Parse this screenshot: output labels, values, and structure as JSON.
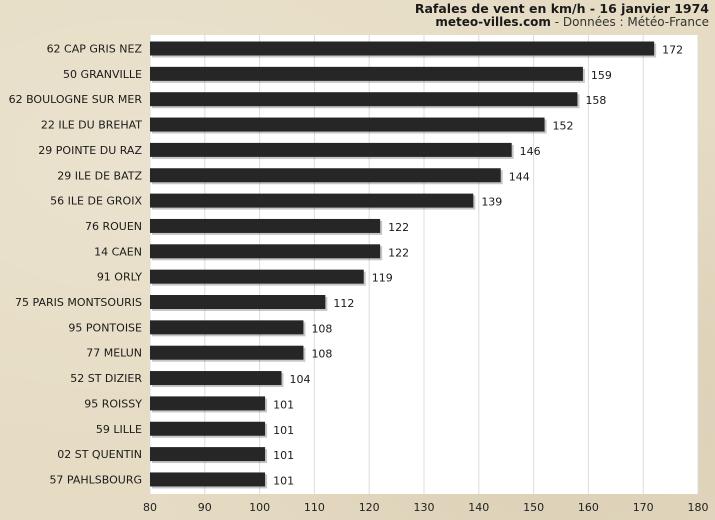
{
  "chart_data": {
    "type": "bar",
    "orientation": "horizontal",
    "title": "Rafales de vent en km/h - 16 janvier 1974",
    "subtitle_site": "meteo-villes.com",
    "subtitle_source": " - Données : Météo-France",
    "categories": [
      "62 CAP GRIS NEZ",
      "50 GRANVILLE",
      "62 BOULOGNE SUR MER",
      "22 ILE DU BREHAT",
      "29 POINTE DU RAZ",
      "29 ILE DE BATZ",
      "56 ILE DE GROIX",
      "76 ROUEN",
      "14 CAEN",
      "91 ORLY",
      "75 PARIS MONTSOURIS",
      "95 PONTOISE",
      "77 MELUN",
      "52 ST DIZIER",
      "95 ROISSY",
      "59 LILLE",
      "02 ST QUENTIN",
      "57 PAHLSBOURG"
    ],
    "values": [
      172,
      159,
      158,
      152,
      146,
      144,
      139,
      122,
      122,
      119,
      112,
      108,
      108,
      104,
      101,
      101,
      101,
      101
    ],
    "xlim": [
      80,
      180
    ],
    "xticks": [
      "80",
      "90",
      "100",
      "110",
      "120",
      "130",
      "140",
      "150",
      "160",
      "170",
      "180"
    ],
    "grid": true,
    "colors": {
      "bar": "#262626",
      "plot_bg": "#ffffff",
      "grid": "#dcdcdc",
      "page_bg": "#e6dcc4"
    }
  }
}
